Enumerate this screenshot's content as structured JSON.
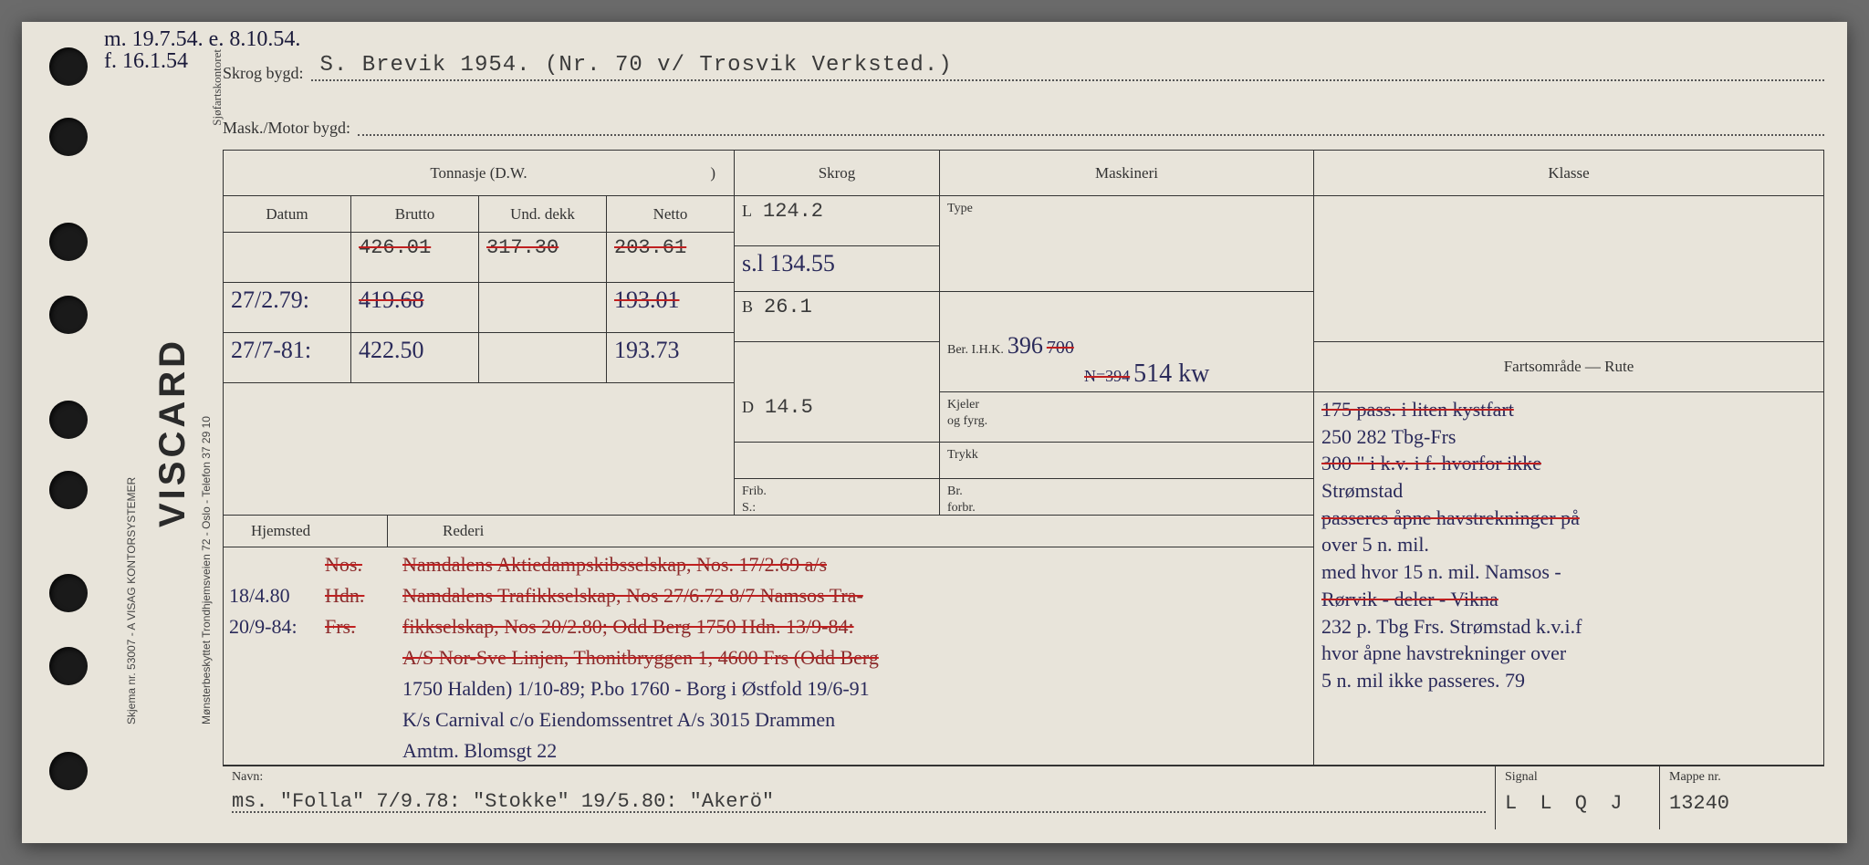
{
  "card": {
    "brand": "VISCARD",
    "side_text_1": "Skjema nr. 53007 - A  VISAG KONTORSYSTEMER",
    "side_text_2": "Mønsterbeskyttet  Trondhjemsveien 72 - Oslo - Telefon 37 29 10",
    "sjofart_label": "Sjøfartskontoret"
  },
  "top_notes": {
    "line1": "m. 19.7.54. e. 8.10.54.",
    "line2": "f. 16.1.54"
  },
  "header": {
    "skrog_label": "Skrog bygd:",
    "skrog_value": "S. Brevik 1954. (Nr. 70 v/ Trosvik Verksted.)",
    "motor_label": "Mask./Motor bygd:",
    "motor_value": ""
  },
  "tonnasje": {
    "title": "Tonnasje (D.W.",
    "close": ")",
    "cols": {
      "datum": "Datum",
      "brutto": "Brutto",
      "und": "Und. dekk",
      "netto": "Netto"
    },
    "rows": [
      {
        "datum": "",
        "brutto": "426.01",
        "und": "317.30",
        "netto": "203.61",
        "struck": true
      },
      {
        "datum": "27/2.79:",
        "brutto": "419.68",
        "und": "",
        "netto": "193.01",
        "struck": true
      },
      {
        "datum": "27/7-81:",
        "brutto": "422.50",
        "und": "",
        "netto": "193.73",
        "struck": false
      }
    ]
  },
  "skrog": {
    "title": "Skrog",
    "L_label": "L",
    "L_val": "124.2",
    "sl_label": "s.l",
    "sl_val": "134.55",
    "B_label": "B",
    "B_val": "26.1",
    "D_label": "D",
    "D_val": "14.5",
    "frib_label": "Frib.\nS.:"
  },
  "maskineri": {
    "title": "Maskineri",
    "type_label": "Type",
    "ber_label": "Ber. I.H.K.",
    "ber_val": "396",
    "ber_val2": "700",
    "ber_val3": "N=394",
    "kw_val": "514 kw",
    "kjeler_label": "Kjeler\nog fyrg.",
    "trykk_label": "Trykk",
    "br_label": "Br.\nforbr."
  },
  "klasse": {
    "title": "Klasse",
    "farts_label": "Fartsområde — Rute",
    "lines": [
      "175 pass. i liten kystfart",
      "250 282               Tbg-Frs",
      "300  \"  i k.v. i f. hvorfor ikke",
      "Strømstad",
      "passeres åpne havstrekninger på",
      "over 5 n. mil.",
      "med hvor 15 n. mil.  Namsos -",
      "Rørvik - deler - Vikna",
      "232 p. Tbg Frs. Strømstad k.v.i.f",
      "hvor åpne havstrekninger over",
      "5 n. mil ikke passeres.     79"
    ]
  },
  "hjemsted": {
    "h_label": "Hjemsted",
    "r_label": "Rederi",
    "rows": [
      {
        "dato": "",
        "sted": "Nos.",
        "rederi": "Namdalens Aktiedampskibsselskap, Nos. 17/2.69 a/s",
        "struck": true
      },
      {
        "dato": "18/4.80",
        "sted": "Hdn.",
        "rederi": "Namdalens Trafikkselskap, Nos 27/6.72 8/7 Namsos Tra-",
        "struck": true
      },
      {
        "dato": "20/9-84:",
        "sted": "Frs.",
        "rederi": "fikkselskap, Nos 20/2.80; Odd Berg 1750 Hdn. 13/9-84:",
        "struck": true
      },
      {
        "dato": "",
        "sted": "",
        "rederi": "A/S Nor-Sve Linjen, Thonitbryggen 1, 4600 Frs (Odd Berg",
        "struck": true
      },
      {
        "dato": "",
        "sted": "",
        "rederi": "1750 Halden) 1/10-89; P.bo 1760 - Borg i Østfold 19/6-91",
        "struck": false
      },
      {
        "dato": "",
        "sted": "",
        "rederi": "K/s Carnival c/o Eiendomssentret A/s 3015 Drammen",
        "struck": false
      },
      {
        "dato": "",
        "sted": "",
        "rederi": "Amtm. Blomsgt 22",
        "struck": false
      }
    ]
  },
  "bottom": {
    "navn_label": "Navn:",
    "navn_value": "ms. \"Folla\" 7/9.78: \"Stokke\" 19/5.80: \"Akerö\"",
    "signal_label": "Signal",
    "signal_value": "L L Q J",
    "mappe_label": "Mappe nr.",
    "mappe_value": "13240"
  },
  "colors": {
    "paper": "#e8e4da",
    "ink": "#333333",
    "typed": "#3a3a3a",
    "hand_blue": "#2a2a5a",
    "hand_red": "#8a2a2a",
    "strike_red": "#c02020"
  }
}
